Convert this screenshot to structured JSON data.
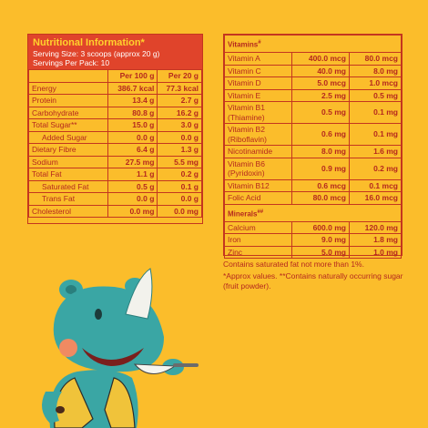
{
  "left": {
    "title": "Nutritional Information*",
    "serving_size": "Serving Size: 3 scoops (approx 20 g)",
    "servings_per_pack": "Servings Per Pack: 10",
    "col_per100": "Per 100 g",
    "col_per20": "Per 20 g",
    "rows": [
      {
        "name": "Energy",
        "v100": "386.7 kcal",
        "v20": "77.3 kcal",
        "indent": false
      },
      {
        "name": "Protein",
        "v100": "13.4 g",
        "v20": "2.7 g",
        "indent": false
      },
      {
        "name": "Carbohydrate",
        "v100": "80.8 g",
        "v20": "16.2 g",
        "indent": false
      },
      {
        "name": "Total Sugar**",
        "v100": "15.0 g",
        "v20": "3.0 g",
        "indent": false
      },
      {
        "name": "Added Sugar",
        "v100": "0.0 g",
        "v20": "0.0 g",
        "indent": true
      },
      {
        "name": "Dietary Fibre",
        "v100": "6.4 g",
        "v20": "1.3 g",
        "indent": false
      },
      {
        "name": "Sodium",
        "v100": "27.5 mg",
        "v20": "5.5 mg",
        "indent": false
      },
      {
        "name": "Total Fat",
        "v100": "1.1 g",
        "v20": "0.2 g",
        "indent": false
      },
      {
        "name": "Saturated Fat",
        "v100": "0.5 g",
        "v20": "0.1 g",
        "indent": true
      },
      {
        "name": "Trans Fat",
        "v100": "0.0 g",
        "v20": "0.0 g",
        "indent": true
      },
      {
        "name": "Cholesterol",
        "v100": "0.0 mg",
        "v20": "0.0 mg",
        "indent": false
      }
    ]
  },
  "right": {
    "vitamins_label": "Vitamins",
    "vitamins_sup": "#",
    "vitamins": [
      {
        "name": "Vitamin A",
        "v100": "400.0 mcg",
        "v20": "80.0 mcg"
      },
      {
        "name": "Vitamin C",
        "v100": "40.0 mg",
        "v20": "8.0 mg"
      },
      {
        "name": "Vitamin D",
        "v100": "5.0 mcg",
        "v20": "1.0 mcg"
      },
      {
        "name": "Vitamin E",
        "v100": "2.5 mg",
        "v20": "0.5 mg"
      },
      {
        "name": "Vitamin B1\n(Thiamine)",
        "v100": "0.5 mg",
        "v20": "0.1 mg"
      },
      {
        "name": "Vitamin B2\n(Riboflavin)",
        "v100": "0.6 mg",
        "v20": "0.1 mg"
      },
      {
        "name": "Nicotinamide",
        "v100": "8.0 mg",
        "v20": "1.6 mg"
      },
      {
        "name": "Vitamin B6\n(Pyridoxin)",
        "v100": "0.9 mg",
        "v20": "0.2 mg"
      },
      {
        "name": "Vitamin B12",
        "v100": "0.6 mcg",
        "v20": "0.1 mcg"
      },
      {
        "name": "Folic Acid",
        "v100": "80.0 mcg",
        "v20": "16.0 mcg"
      }
    ],
    "minerals_label": "Minerals",
    "minerals_sup": "##",
    "minerals": [
      {
        "name": "Calcium",
        "v100": "600.0 mg",
        "v20": "120.0 mg"
      },
      {
        "name": "Iron",
        "v100": "9.0 mg",
        "v20": "1.8 mg"
      },
      {
        "name": "Zinc",
        "v100": "5.0 mg",
        "v20": "1.0 mg"
      }
    ]
  },
  "notes": {
    "note1": "Contains saturated fat not more than 1%.",
    "note2": "*Approx values. **Contains naturally occurring sugar (fruit powder)."
  },
  "colors": {
    "background": "#fbbd2b",
    "header": "#e0442b",
    "text": "#b5281e",
    "mascot": "#3aa6a4"
  }
}
